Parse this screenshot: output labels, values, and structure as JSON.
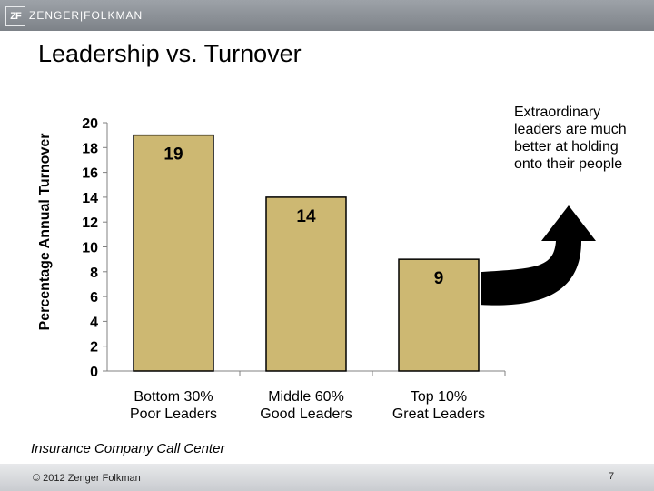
{
  "header": {
    "logo_mark": "ZF",
    "logo_text": "ZENGER|FOLKMAN"
  },
  "slide": {
    "title": "Leadership vs. Turnover",
    "annotation": "Extraordinary leaders are much better at holding onto their people",
    "source": "Insurance Company Call Center"
  },
  "footer": {
    "copyright": "© 2012 Zenger Folkman",
    "page_number": "7"
  },
  "colors": {
    "bar_fill": "#cdb872",
    "bar_stroke": "#000000",
    "arrow": "#000000"
  },
  "chart_data": {
    "type": "bar",
    "categories": [
      [
        "Bottom 30%",
        "Poor Leaders"
      ],
      [
        "Middle 60%",
        "Good Leaders"
      ],
      [
        "Top 10%",
        "Great Leaders"
      ]
    ],
    "values": [
      19,
      14,
      9
    ],
    "data_labels": [
      "19",
      "14",
      "9"
    ],
    "ylabel": "Percentage Annual Turnover",
    "ylim": [
      0,
      20
    ],
    "yticks": [
      0,
      2,
      4,
      6,
      8,
      10,
      12,
      14,
      16,
      18,
      20
    ],
    "grid": false
  }
}
